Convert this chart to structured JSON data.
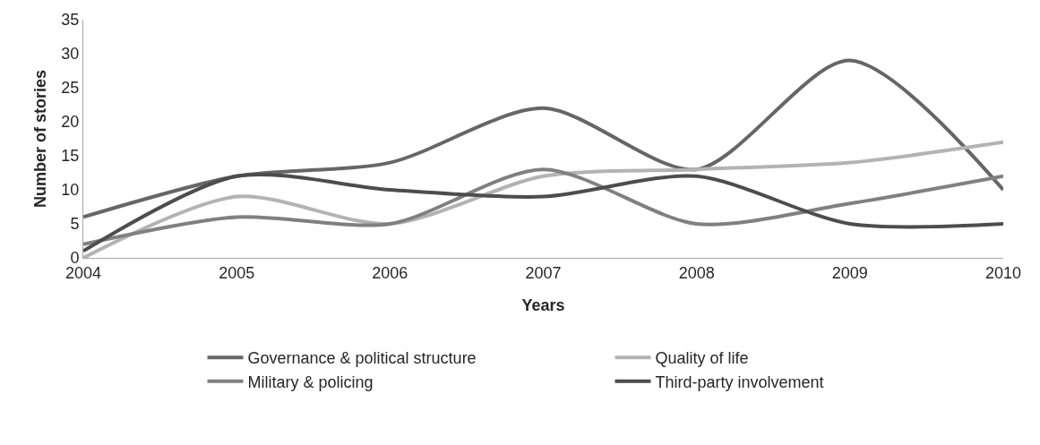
{
  "chart_data": {
    "type": "line",
    "xlabel": "Years",
    "ylabel": "Number of stories",
    "x": [
      2004,
      2005,
      2006,
      2007,
      2008,
      2009,
      2010
    ],
    "series": [
      {
        "name": "Governance & political structure",
        "color": "#666666",
        "values": [
          6,
          12,
          14,
          22,
          13,
          29,
          10
        ]
      },
      {
        "name": "Quality of life",
        "color": "#b3b3b3",
        "values": [
          0,
          9,
          5,
          12,
          13,
          14,
          17
        ]
      },
      {
        "name": "Military & policing",
        "color": "#808080",
        "values": [
          2,
          6,
          5,
          13,
          5,
          8,
          12
        ]
      },
      {
        "name": "Third-party involvement",
        "color": "#4d4d4d",
        "values": [
          1,
          12,
          10,
          9,
          12,
          5,
          5
        ]
      }
    ],
    "xlim": [
      2004,
      2010
    ],
    "xticks": [
      2004,
      2005,
      2006,
      2007,
      2008,
      2009,
      2010
    ],
    "ylim": [
      0,
      35
    ],
    "yticks": [
      0,
      5,
      10,
      15,
      20,
      25,
      30,
      35
    ],
    "grid": false,
    "legend": "bottom",
    "marker": "none",
    "line_style": "solid"
  }
}
